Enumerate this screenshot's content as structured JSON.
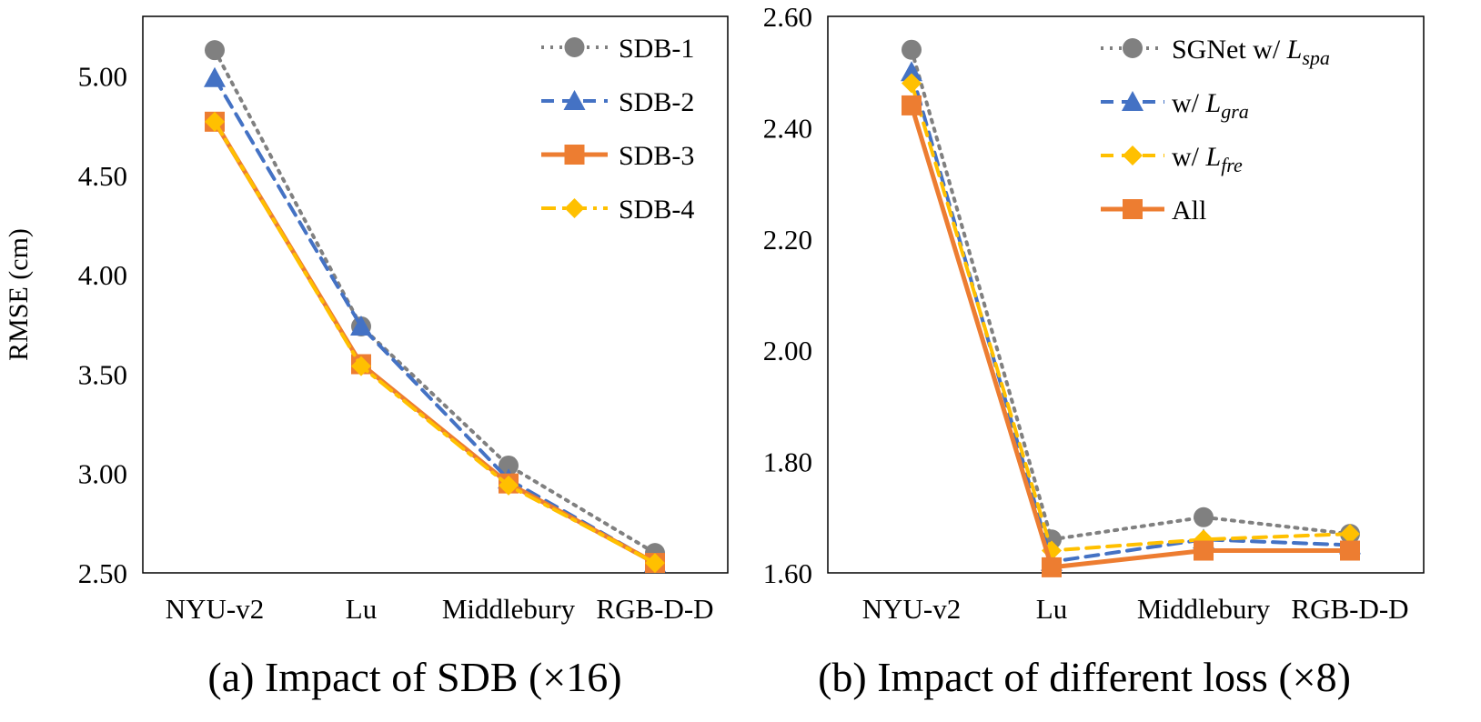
{
  "chart_data": [
    {
      "type": "line",
      "title": "(a) Impact of SDB (×16)",
      "xlabel": "",
      "ylabel": "RMSE (cm)",
      "categories": [
        "NYU-v2",
        "Lu",
        "Middlebury",
        "RGB-D-D"
      ],
      "ylim": [
        2.5,
        5.3
      ],
      "yticks": [
        2.5,
        3.0,
        3.5,
        4.0,
        4.5,
        5.0
      ],
      "ytick_labels": [
        "2.50",
        "3.00",
        "3.50",
        "4.00",
        "4.50",
        "5.00"
      ],
      "grid": false,
      "legend_position": "top-right",
      "series": [
        {
          "name": "SDB-1",
          "values": [
            5.13,
            3.74,
            3.04,
            2.6
          ],
          "color": "#808080",
          "marker": "circle",
          "dash": "dotted"
        },
        {
          "name": "SDB-2",
          "values": [
            4.99,
            3.74,
            2.97,
            2.55
          ],
          "color": "#4472C4",
          "marker": "triangle",
          "dash": "dashed"
        },
        {
          "name": "SDB-3",
          "values": [
            4.77,
            3.55,
            2.95,
            2.55
          ],
          "color": "#ED7D31",
          "marker": "square",
          "dash": "solid"
        },
        {
          "name": "SDB-4",
          "values": [
            4.77,
            3.54,
            2.94,
            2.55
          ],
          "color": "#FFC000",
          "marker": "diamond",
          "dash": "dashdot"
        }
      ]
    },
    {
      "type": "line",
      "title": "(b) Impact of different loss (×8)",
      "xlabel": "",
      "ylabel": "",
      "categories": [
        "NYU-v2",
        "Lu",
        "Middlebury",
        "RGB-D-D"
      ],
      "ylim": [
        1.6,
        2.6
      ],
      "yticks": [
        1.6,
        1.8,
        2.0,
        2.2,
        2.4,
        2.6
      ],
      "ytick_labels": [
        "1.60",
        "1.80",
        "2.00",
        "2.20",
        "2.40",
        "2.60"
      ],
      "grid": false,
      "legend_position": "top-right",
      "series": [
        {
          "name": "SGNet w/ ",
          "sub": "spa",
          "values": [
            2.54,
            1.66,
            1.7,
            1.67
          ],
          "color": "#808080",
          "marker": "circle",
          "dash": "dotted"
        },
        {
          "name": "w/ ",
          "sub": "gra",
          "values": [
            2.5,
            1.62,
            1.66,
            1.65
          ],
          "color": "#4472C4",
          "marker": "triangle",
          "dash": "dashed"
        },
        {
          "name": "w/ ",
          "sub": "fre",
          "values": [
            2.48,
            1.64,
            1.66,
            1.67
          ],
          "color": "#FFC000",
          "marker": "diamond",
          "dash": "dashed"
        },
        {
          "name": "All",
          "sub": "",
          "values": [
            2.44,
            1.61,
            1.64,
            1.64
          ],
          "color": "#ED7D31",
          "marker": "square",
          "dash": "solid"
        }
      ]
    }
  ]
}
